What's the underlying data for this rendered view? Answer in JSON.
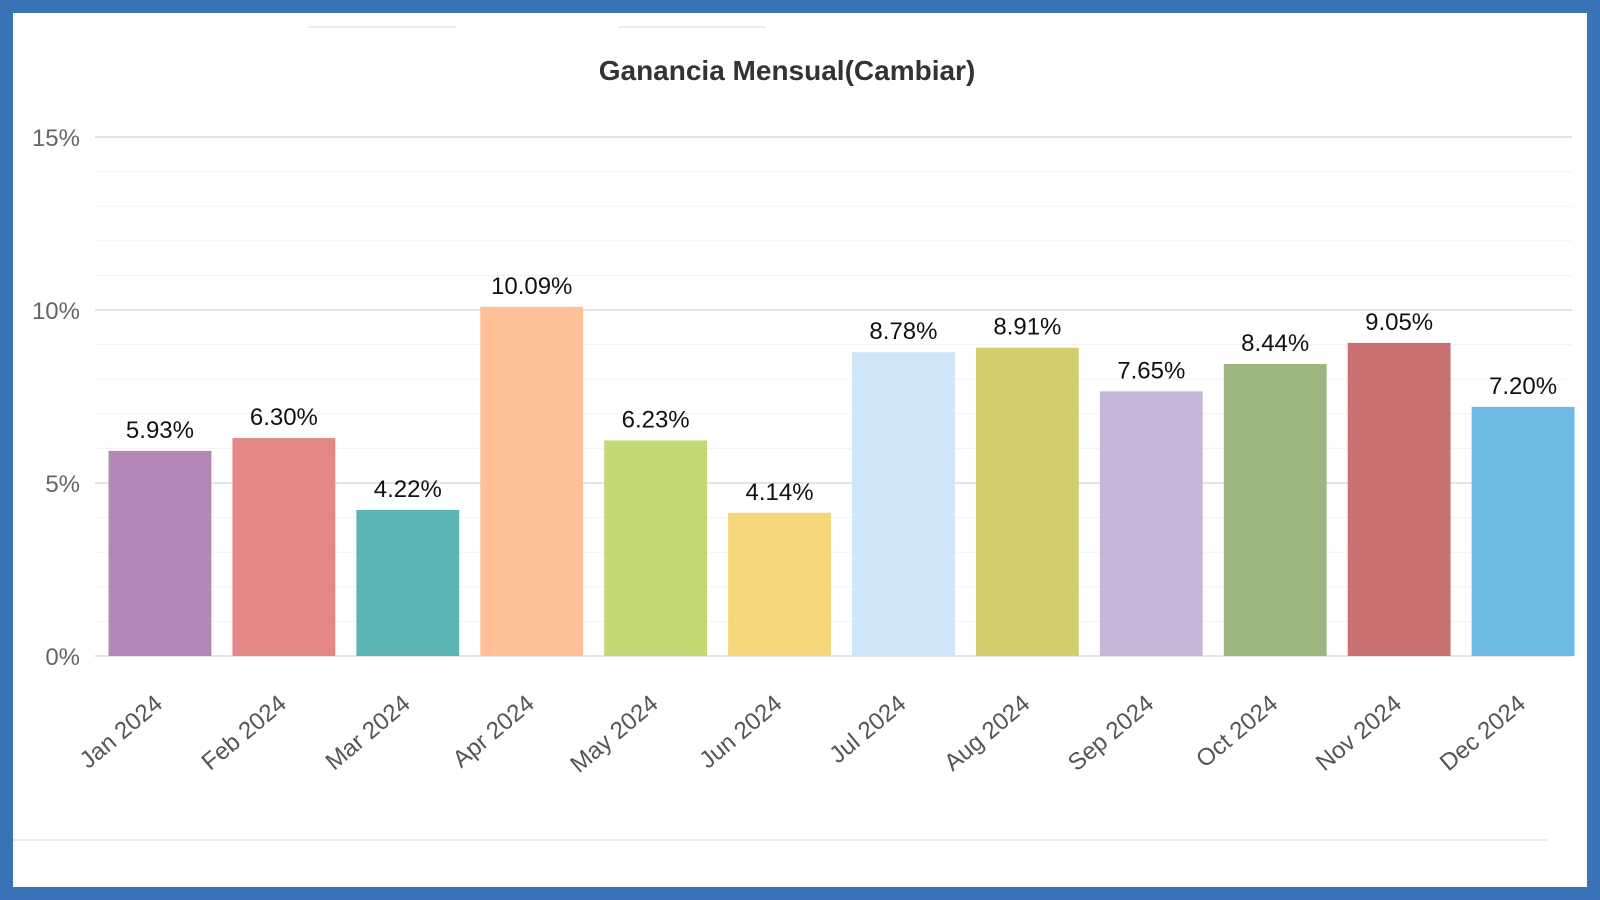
{
  "chart_data": {
    "type": "bar",
    "title": "Ganancia Mensual(Cambiar)",
    "categories": [
      "Jan 2024",
      "Feb 2024",
      "Mar 2024",
      "Apr 2024",
      "May 2024",
      "Jun 2024",
      "Jul 2024",
      "Aug 2024",
      "Sep 2024",
      "Oct 2024",
      "Nov 2024",
      "Dec 2024"
    ],
    "values": [
      5.93,
      6.3,
      4.22,
      10.09,
      6.23,
      4.14,
      8.78,
      8.91,
      7.65,
      8.44,
      9.05,
      7.2
    ],
    "data_labels": [
      "5.93%",
      "6.30%",
      "4.22%",
      "10.09%",
      "6.23%",
      "4.14%",
      "8.78%",
      "8.91%",
      "7.65%",
      "8.44%",
      "9.05%",
      "7.20%"
    ],
    "colors": [
      "#b388b7",
      "#e38886",
      "#5db5b3",
      "#ffbf97",
      "#c1d873",
      "#f6d67a",
      "#cfe6f9",
      "#d3cd6f",
      "#c8b6d8",
      "#9db67f",
      "#c87072",
      "#6dbbe5"
    ],
    "yticks": [
      0,
      5,
      10,
      15
    ],
    "ytick_labels": [
      "0%",
      "5%",
      "10%",
      "15%"
    ],
    "ylim": [
      0,
      15
    ],
    "grid": true,
    "legend": "none"
  }
}
